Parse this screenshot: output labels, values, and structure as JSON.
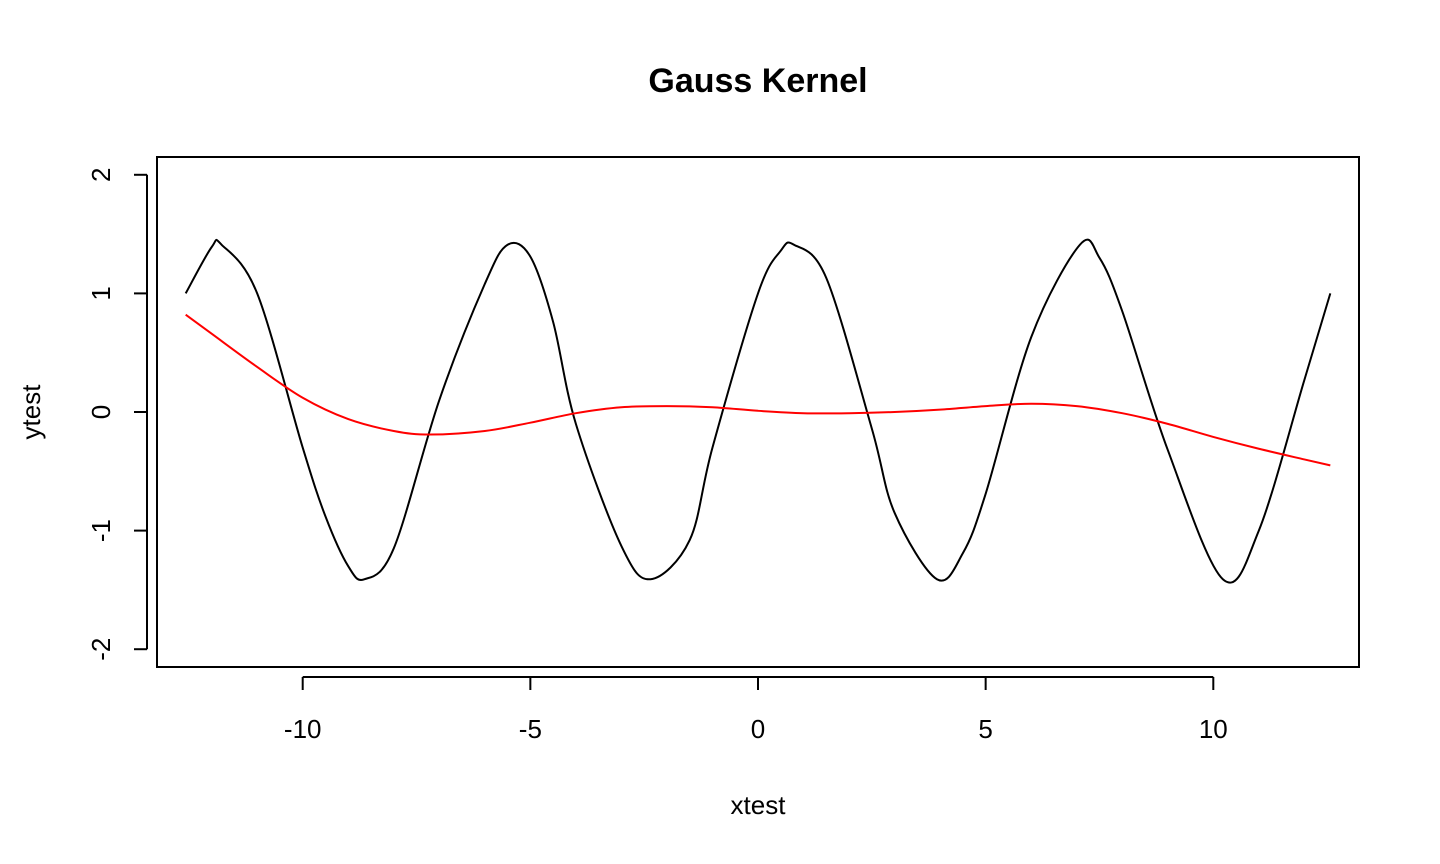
{
  "chart_data": {
    "type": "line",
    "title": "Gauss Kernel",
    "xlabel": "xtest",
    "ylabel": "ytest",
    "xlim": [
      -13.2,
      13.2
    ],
    "ylim": [
      -2.15,
      2.15
    ],
    "xticks": [
      -10,
      -5,
      0,
      5,
      10
    ],
    "xtick_labels": [
      "-10",
      "-5",
      "0",
      "5",
      "10"
    ],
    "yticks": [
      -2,
      -1,
      0,
      1,
      2
    ],
    "ytick_labels": [
      "-2",
      "-1",
      "0",
      "1",
      "2"
    ],
    "grid": false,
    "series": [
      {
        "color": "#000000",
        "x": [
          -12.57,
          -12.0,
          -11.78,
          -11.0,
          -10.0,
          -9.5,
          -9.0,
          -8.64,
          -8.0,
          -7.0,
          -6.0,
          -5.5,
          -5.0,
          -4.5,
          -4.0,
          -3.0,
          -2.36,
          -1.5,
          -1.0,
          0.0,
          0.5,
          0.79,
          1.5,
          2.5,
          3.0,
          3.93,
          4.5,
          5.0,
          6.0,
          7.07,
          7.5,
          8.0,
          9.0,
          10.21,
          11.0,
          12.0,
          12.57
        ],
        "y": [
          1.0,
          1.39,
          1.41,
          1.0,
          -0.3,
          -0.88,
          -1.3,
          -1.41,
          -1.15,
          0.1,
          1.08,
          1.41,
          1.31,
          0.76,
          -0.1,
          -1.13,
          -1.41,
          -1.08,
          -0.3,
          1.0,
          1.36,
          1.41,
          1.13,
          -0.14,
          -0.85,
          -1.41,
          -1.19,
          -0.69,
          0.63,
          1.41,
          1.3,
          0.85,
          -0.32,
          -1.41,
          -1.0,
          0.27,
          1.0
        ]
      },
      {
        "color": "#ff0000",
        "x": [
          -12.57,
          -12.0,
          -11.0,
          -10.0,
          -9.0,
          -8.0,
          -7.2,
          -6.0,
          -5.0,
          -4.0,
          -3.0,
          -2.0,
          -1.0,
          0.0,
          1.0,
          2.0,
          3.0,
          4.0,
          5.0,
          6.0,
          7.0,
          8.0,
          9.0,
          10.0,
          11.0,
          12.0,
          12.57
        ],
        "y": [
          0.82,
          0.66,
          0.38,
          0.12,
          -0.06,
          -0.16,
          -0.19,
          -0.16,
          -0.09,
          -0.01,
          0.04,
          0.05,
          0.04,
          0.01,
          -0.01,
          -0.01,
          0.0,
          0.02,
          0.05,
          0.07,
          0.05,
          -0.01,
          -0.1,
          -0.21,
          -0.31,
          -0.4,
          -0.45
        ]
      }
    ]
  }
}
